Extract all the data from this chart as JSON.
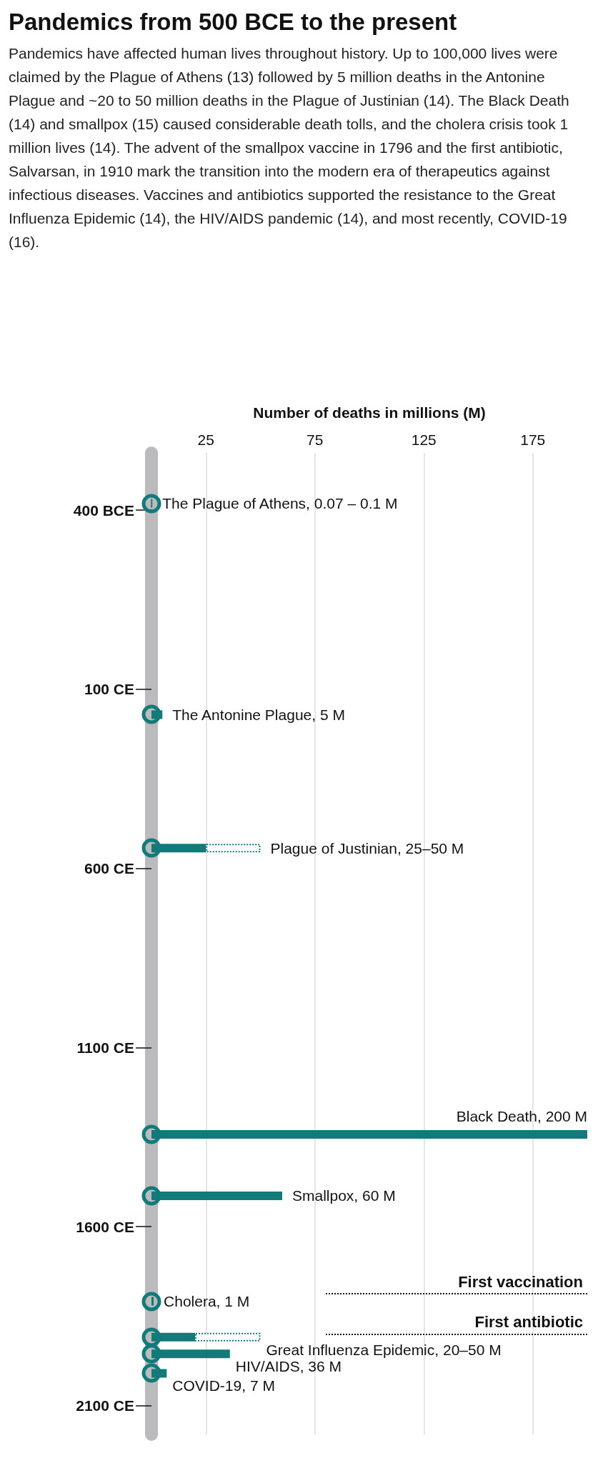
{
  "chart_data": {
    "type": "bar",
    "orientation": "horizontal",
    "stacked": true,
    "title": "Pandemics from 500 BCE to the present",
    "subtitle": "Pandemics have affected human lives throughout history. Up to 100,000 lives were claimed by the Plague of Athens (13) followed by 5 million deaths in the Antonine Plague and ~20 to 50 million deaths in the Plague of Justinian (14). The Black Death (14) and smallpox (15) caused considerable death tolls, and the cholera crisis took 1 million lives (14). The advent of the smallpox vaccine in 1796 and the first antibiotic, Salvarsan, in 1910 mark the transition into the modern era of therapeutics against infectious diseases. Vaccines and antibiotics supported the resistance to the Great Influenza Epidemic (14), the HIV/AIDS pandemic (14), and most recently, COVID-19 (16).",
    "xlabel": "Number of deaths in millions (M)",
    "x": [
      -430,
      165,
      541,
      1347,
      1520,
      1817,
      1918,
      1965,
      2020
    ],
    "series": [
      {
        "color": "#127b7a",
        "values": [
          0.07,
          5,
          25,
          200,
          60,
          1,
          20,
          36,
          7
        ]
      },
      {
        "color": "#127b7a",
        "line_style": "dotted",
        "values": [
          0.03,
          null,
          25,
          null,
          null,
          null,
          30,
          null,
          null
        ]
      }
    ],
    "value_labels": [
      "The Plague of Athens, 0.07 – 0.1 M",
      "The Antonine Plague, 5 M",
      "Plague of Justinian, 25–50 M",
      "Black Death, 200 M",
      "Smallpox, 60 M",
      "Cholera, 1 M",
      "Great Influenza Epidemic, 20–50 M",
      "HIV/AIDS, 36 M",
      "COVID-19, 7 M"
    ],
    "xlim": [
      0,
      200
    ],
    "xticks": [
      25,
      75,
      125,
      175
    ],
    "ylim": [
      2180,
      -560
    ],
    "yticks": [
      {
        "value": -400,
        "label": "400 BCE"
      },
      {
        "value": 100,
        "label": "100 CE"
      },
      {
        "value": 600,
        "label": "600 CE"
      },
      {
        "value": 1100,
        "label": "1100 CE"
      },
      {
        "value": 1600,
        "label": "1600 CE"
      },
      {
        "value": 2100,
        "label": "2100 CE"
      }
    ],
    "ref_lines": [
      {
        "axis": "y",
        "value": 1796,
        "label": "First vaccination",
        "color": "#111111",
        "line_style": "dotted"
      },
      {
        "axis": "y",
        "value": 1910,
        "label": "First antibiotic",
        "color": "#111111",
        "line_style": "dotted"
      }
    ],
    "grid": "x"
  }
}
